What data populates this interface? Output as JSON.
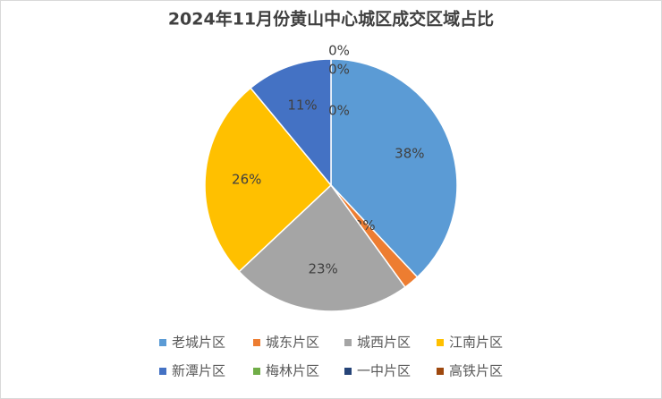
{
  "chart_data": {
    "type": "pie",
    "title": "2024年11月份黄山中心城区成交区域占比",
    "categories": [
      "老城片区",
      "城东片区",
      "城西片区",
      "江南片区",
      "新潭片区",
      "梅林片区",
      "一中片区",
      "高铁片区"
    ],
    "values": [
      38,
      2,
      23,
      26,
      11,
      0,
      0,
      0
    ],
    "value_labels": [
      "38%",
      "2%",
      "23%",
      "26%",
      "11%",
      "0%",
      "0%",
      "0%"
    ],
    "colors": [
      "#5b9bd5",
      "#ed7d31",
      "#a5a5a5",
      "#ffc000",
      "#4472c4",
      "#70ad47",
      "#264478",
      "#9e480e"
    ],
    "legend": "bottom"
  }
}
